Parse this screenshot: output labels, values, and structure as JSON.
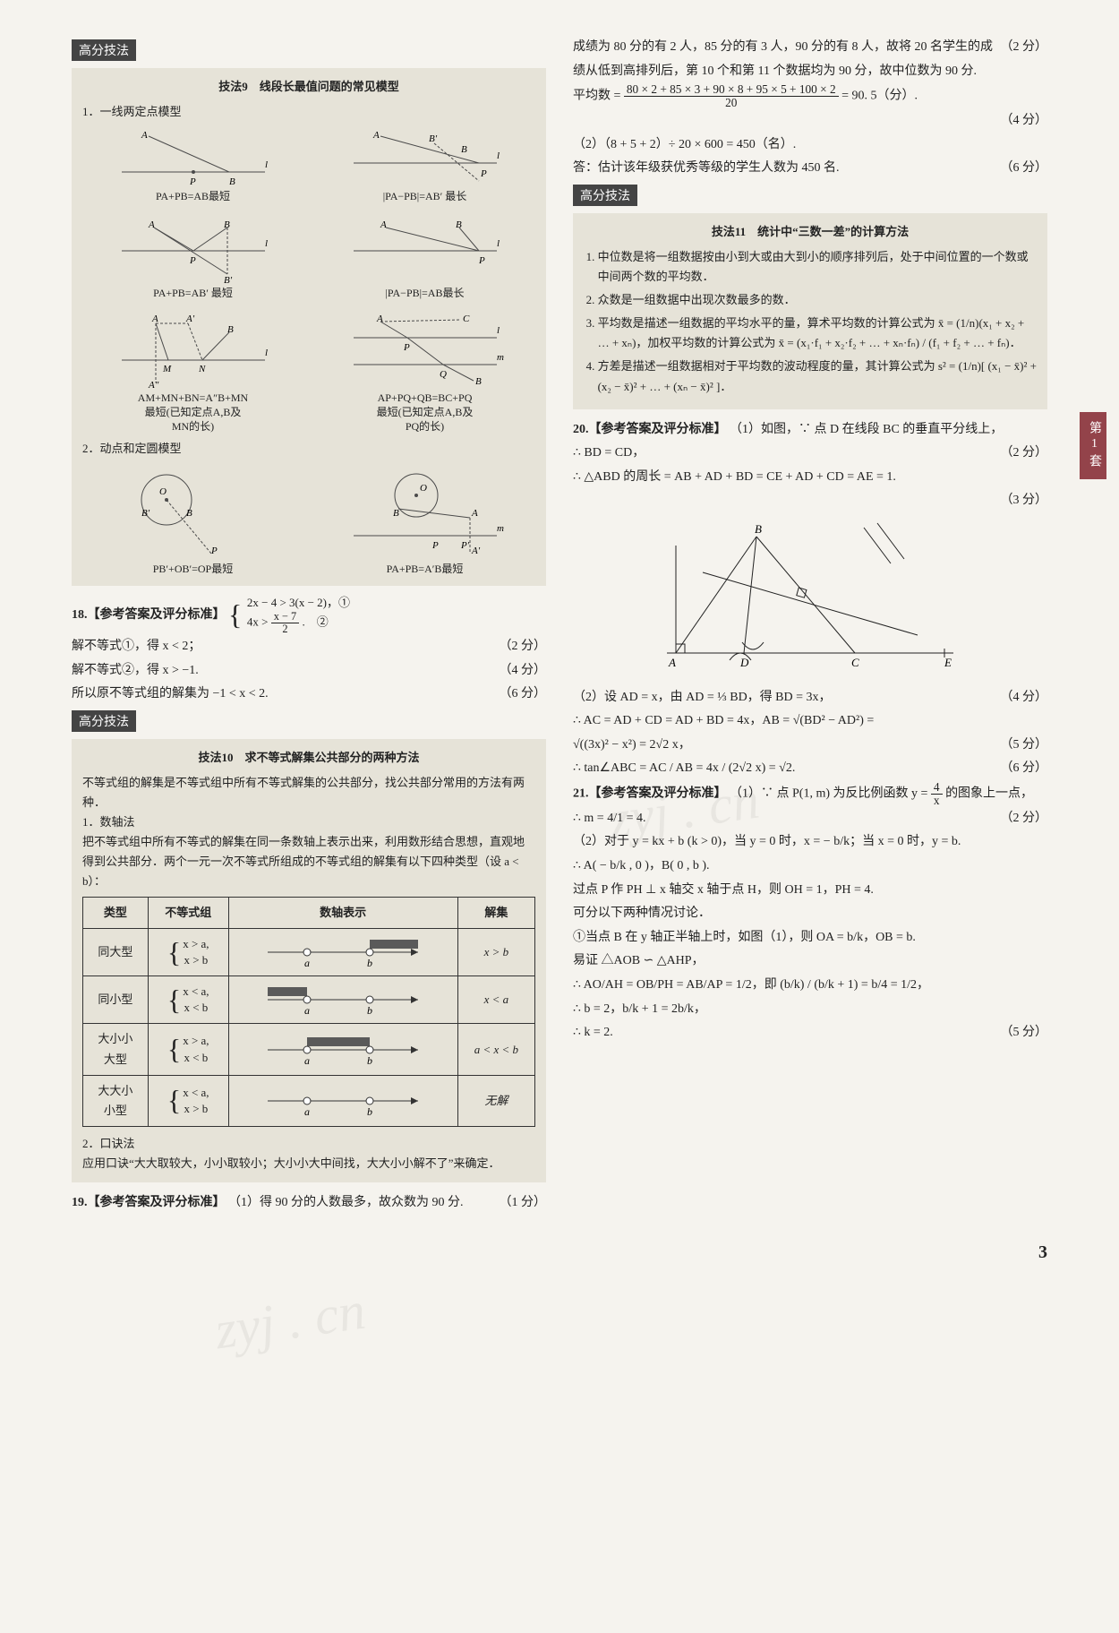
{
  "page_number": "3",
  "side_tab": "第1套",
  "watermarks": [
    "zyj . cn",
    "zyj . cn"
  ],
  "left": {
    "tag1": "高分技法",
    "box9": {
      "title": "技法9　线段长最值问题的常见模型",
      "sub1": "1．一线两定点模型",
      "diagrams1": [
        {
          "cap": "PA+PB=AB最短"
        },
        {
          "cap": "|PA−PB|=AB′ 最长"
        },
        {
          "cap": "PA+PB=AB′ 最短"
        },
        {
          "cap": "|PA−PB|=AB最长"
        },
        {
          "cap": "AM+MN+BN=A″B+MN\n最短(已知定点A,B及\nMN的长)"
        },
        {
          "cap": "AP+PQ+QB=BC+PQ\n最短(已知定点A,B及\nPQ的长)"
        }
      ],
      "sub2": "2．动点和定圆模型",
      "diagrams2": [
        {
          "cap": "PB′+OB′=OP最短"
        },
        {
          "cap": "PA+PB=A′B最短"
        }
      ]
    },
    "q18": {
      "label": "18.【参考答案及评分标准】",
      "sys1": "2x − 4 > 3(x − 2)，①",
      "sys2_left": "4x >",
      "sys2_num": "x − 7",
      "sys2_den": "2",
      "sys2_right": ".　②",
      "l1t": "解不等式①，得 x < 2；",
      "l1s": "（2 分）",
      "l2t": "解不等式②，得 x > −1.",
      "l2s": "（4 分）",
      "l3t": "所以原不等式组的解集为 −1 < x < 2.",
      "l3s": "（6 分）"
    },
    "tag2": "高分技法",
    "box10": {
      "title": "技法10　求不等式解集公共部分的两种方法",
      "intro": "不等式组的解集是不等式组中所有不等式解集的公共部分，找公共部分常用的方法有两种．",
      "m1_h": "1．数轴法",
      "m1_body": "把不等式组中所有不等式的解集在同一条数轴上表示出来，利用数形结合思想，直观地得到公共部分．两个一元一次不等式所组成的不等式组的解集有以下四种类型（设 a < b）：",
      "tbl": {
        "headers": [
          "类型",
          "不等式组",
          "数轴表示",
          "解集"
        ],
        "rows": [
          {
            "type": "同大型",
            "sys": [
              "x > a,",
              "x > b"
            ],
            "res": "x > b",
            "open_a": true,
            "open_b": true,
            "seg": "right_b"
          },
          {
            "type": "同小型",
            "sys": [
              "x < a,",
              "x < b"
            ],
            "res": "x < a",
            "open_a": true,
            "open_b": true,
            "seg": "left_a"
          },
          {
            "type": "大小小\n大型",
            "sys": [
              "x > a,",
              "x < b"
            ],
            "res": "a < x < b",
            "open_a": true,
            "open_b": true,
            "seg": "between"
          },
          {
            "type": "大大小\n小型",
            "sys": [
              "x < a,",
              "x > b"
            ],
            "res": "无解",
            "open_a": true,
            "open_b": true,
            "seg": "none"
          }
        ]
      },
      "m2_h": "2．口诀法",
      "m2_body": "应用口诀“大大取较大，小小取较小；大小小大中间找，大大小小解不了”来确定．"
    },
    "q19": {
      "label": "19.【参考答案及评分标准】",
      "l1t": "（1）得 90 分的人数最多，故众数为 90 分.",
      "l1s": "（1 分）"
    }
  },
  "right": {
    "cont": {
      "l1": "成绩为 80 分的有 2 人，85 分的有 3 人，90 分的有 8 人，故将 20 名学生的成绩从低到高排列后，第 10 个和第 11 个数据均为 90 分，故中位数为 90 分.",
      "l1s": "（2 分）",
      "avg_label": "平均数 =",
      "avg_num": "80 × 2 + 85 × 3 + 90 × 8 + 95 × 5 + 100 × 2",
      "avg_den": "20",
      "avg_res": "= 90. 5（分）.",
      "avg_s": "（4 分）",
      "l3": "（2）（8 + 5 + 2）÷ 20 × 600 = 450（名）.",
      "l4": "答：估计该年级获优秀等级的学生人数为 450 名.",
      "l4s": "（6 分）"
    },
    "tag": "高分技法",
    "box11": {
      "title": "技法11　统计中“三数一差”的计算方法",
      "items": [
        "中位数是将一组数据按由小到大或由大到小的顺序排列后，处于中间位置的一个数或中间两个数的平均数．",
        "众数是一组数据中出现次数最多的数．",
        "平均数是描述一组数据的平均水平的量，算术平均数的计算公式为 x̄ = (1/n)(x₁ + x₂ + … + xₙ)，加权平均数的计算公式为 x̄ = (x₁·f₁ + x₂·f₂ + … + xₙ·fₙ) / (f₁ + f₂ + … + fₙ)．",
        "方差是描述一组数据相对于平均数的波动程度的量，其计算公式为 s² = (1/n)[ (x₁ − x̄)² + (x₂ − x̄)² + … + (xₙ − x̄)² ]．"
      ]
    },
    "q20": {
      "label": "20.【参考答案及评分标准】",
      "l1": "（1）如图，∵ 点 D 在线段 BC 的垂直平分线上，",
      "l2t": "∴ BD = CD，",
      "l2s": "（2 分）",
      "l3": "∴ △ABD 的周长 = AB + AD + BD = CE + AD + CD = AE = 1.",
      "l3s": "（3 分）",
      "l4t": "（2）设 AD = x，由 AD = ⅓ BD，得 BD = 3x，",
      "l4s": "（4 分）",
      "l5a": "∴ AC = AD + CD = AD + BD = 4x，AB = √(BD² − AD²) =",
      "l5b": "√((3x)² − x²) = 2√2 x，",
      "l5s": "（5 分）",
      "l6t": "∴ tan∠ABC = AC / AB = 4x / (2√2 x) = √2.",
      "l6s": "（6 分）"
    },
    "q21": {
      "label": "21.【参考答案及评分标准】",
      "l1": "（1）∵ 点 P(1, m) 为反比例函数 y =",
      "frac1_num": "4",
      "frac1_den": "x",
      "l1b": " 的图象上一点，",
      "l2t": "∴ m = 4/1 = 4.",
      "l2s": "（2 分）",
      "l3": "（2）对于 y = kx + b (k > 0)，当 y = 0 时，x = − b/k；当 x = 0 时，y = b.",
      "l4": "∴ A( − b/k , 0 )，B( 0 , b ).",
      "l5": "过点 P 作 PH ⊥ x 轴交 x 轴于点 H，则 OH = 1，PH = 4.",
      "l6": "可分以下两种情况讨论．",
      "l7": "①当点 B 在 y 轴正半轴上时，如图（1），则 OA = b/k，OB = b.",
      "l8": "易证 △AOB ∽ △AHP，",
      "l9": "∴ AO/AH = OB/PH = AB/AP = 1/2，即 (b/k) / (b/k + 1) = b/4 = 1/2，",
      "l10": "∴ b = 2，b/k + 1 = 2b/k，",
      "l11t": "∴ k = 2.",
      "l11s": "（5 分）"
    }
  },
  "colors": {
    "box_bg": "#e6e3d8",
    "tag_bg": "#444444",
    "side_bg": "#93434a",
    "stroke": "#4a4a4a",
    "fill_bar": "#5a5a5a"
  }
}
